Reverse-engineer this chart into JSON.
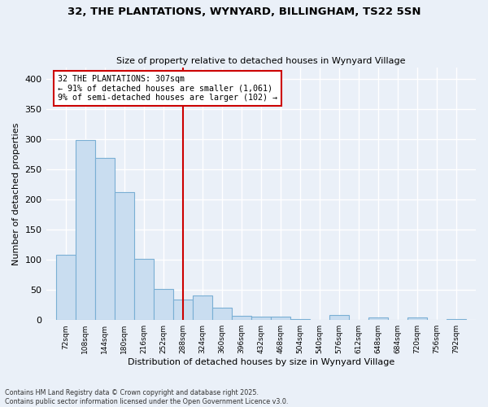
{
  "title1": "32, THE PLANTATIONS, WYNYARD, BILLINGHAM, TS22 5SN",
  "title2": "Size of property relative to detached houses in Wynyard Village",
  "xlabel": "Distribution of detached houses by size in Wynyard Village",
  "ylabel": "Number of detached properties",
  "bar_color": "#c9ddf0",
  "bar_edge_color": "#7aafd4",
  "background_color": "#eaf0f8",
  "grid_color": "#ffffff",
  "annotation_line_color": "#cc0000",
  "annotation_box_color": "#cc0000",
  "annotation_text": "32 THE PLANTATIONS: 307sqm\n← 91% of detached houses are smaller (1,061)\n9% of semi-detached houses are larger (102) →",
  "property_size": 307,
  "bins": [
    72,
    108,
    144,
    180,
    216,
    252,
    288,
    324,
    360,
    396,
    432,
    468,
    504,
    540,
    576,
    612,
    648,
    684,
    720,
    756,
    792
  ],
  "counts": [
    108,
    299,
    270,
    213,
    102,
    52,
    34,
    41,
    21,
    7,
    6,
    6,
    2,
    0,
    8,
    0,
    5,
    0,
    4,
    0,
    2
  ],
  "ylim": [
    0,
    420
  ],
  "yticks": [
    0,
    50,
    100,
    150,
    200,
    250,
    300,
    350,
    400
  ],
  "footnote": "Contains HM Land Registry data © Crown copyright and database right 2025.\nContains public sector information licensed under the Open Government Licence v3.0."
}
